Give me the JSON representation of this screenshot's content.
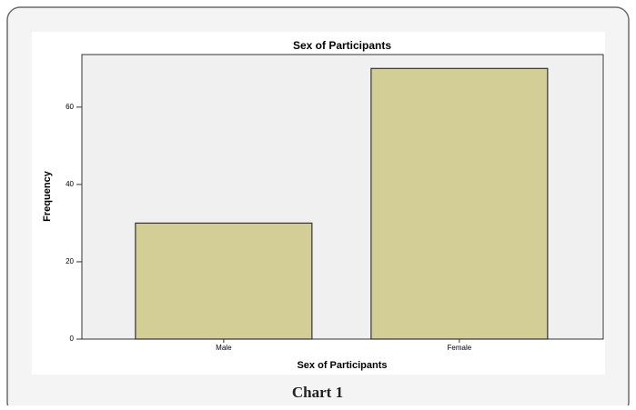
{
  "chart_data": {
    "type": "bar",
    "title": "Sex of Participants",
    "x_label": "Sex of Participants",
    "y_label": "Frequency",
    "categories": [
      "Male",
      "Female"
    ],
    "values": [
      30,
      70
    ],
    "color": "#d3cd96",
    "ylim": [
      0,
      73.6
    ],
    "yticks": [
      0,
      20,
      40,
      60
    ],
    "grid": false
  },
  "caption": "Chart 1"
}
